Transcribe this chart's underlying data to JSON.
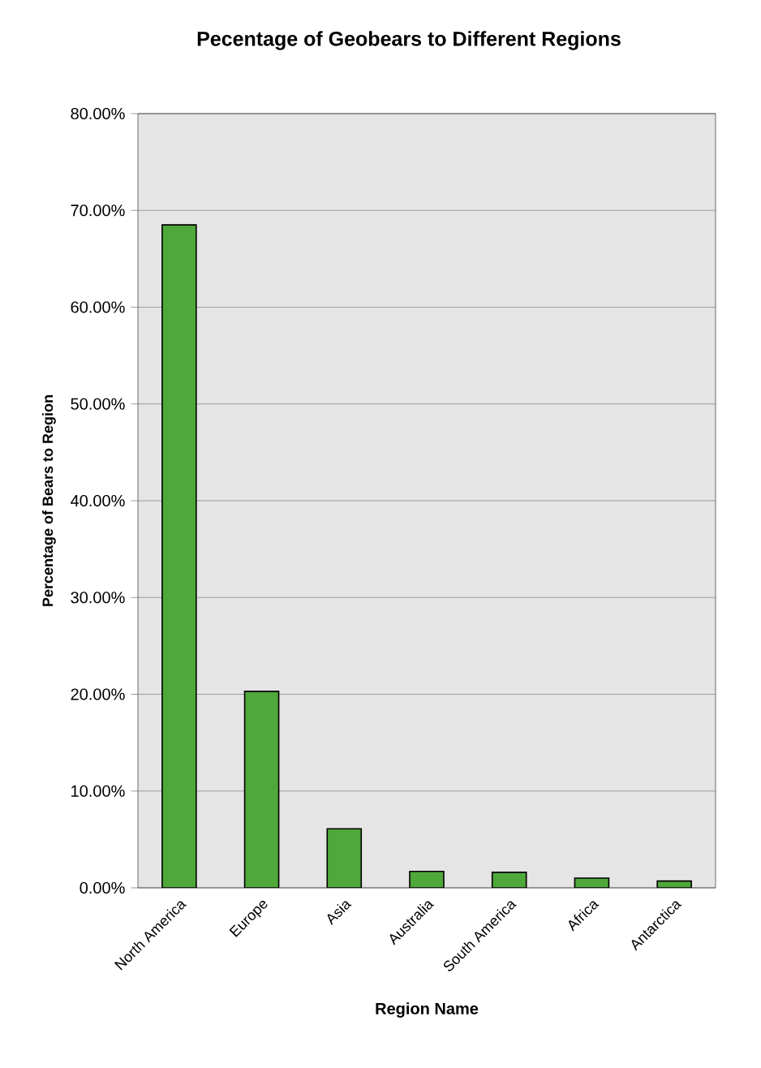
{
  "chart_data": {
    "type": "bar",
    "title": "Pecentage of Geobears to Different Regions",
    "xlabel": "Region Name",
    "ylabel": "Percentage of Bears to Region",
    "categories": [
      "North America",
      "Europe",
      "Asia",
      "Australia",
      "South America",
      "Africa",
      "Antarctica"
    ],
    "values": [
      68.5,
      20.3,
      6.1,
      1.7,
      1.6,
      1.0,
      0.7
    ],
    "color": "#4fa83a",
    "ylim": [
      0,
      80
    ],
    "yticks": [
      {
        "value": 0,
        "label": "0.00%"
      },
      {
        "value": 10,
        "label": "10.00%"
      },
      {
        "value": 20,
        "label": "20.00%"
      },
      {
        "value": 30,
        "label": "30.00%"
      },
      {
        "value": 40,
        "label": "40.00%"
      },
      {
        "value": 50,
        "label": "50.00%"
      },
      {
        "value": 60,
        "label": "60.00%"
      },
      {
        "value": 70,
        "label": "70.00%"
      },
      {
        "value": 80,
        "label": "80.00%"
      }
    ],
    "grid": "y"
  }
}
